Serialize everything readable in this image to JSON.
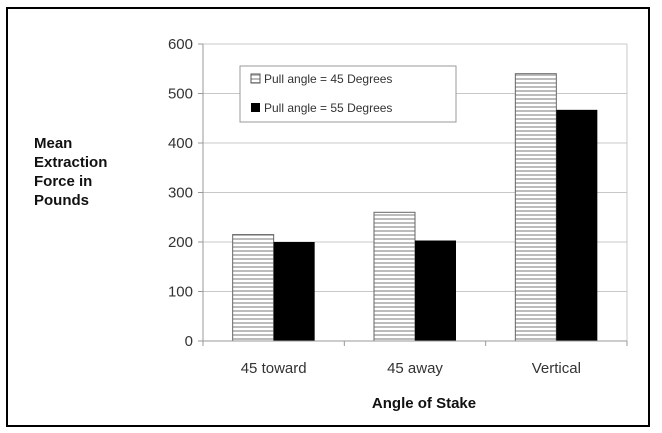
{
  "chart_data": {
    "type": "bar",
    "title": "",
    "xlabel": "Angle of Stake",
    "ylabel": [
      "Mean",
      "Extraction",
      "Force in",
      "Pounds"
    ],
    "categories": [
      "45 toward",
      "45 away",
      "Vertical"
    ],
    "ylim": [
      0,
      600
    ],
    "yticks": [
      "0",
      "100",
      "200",
      "300",
      "400",
      "500",
      "600"
    ],
    "grid": true,
    "legend_position": "top-left",
    "series": [
      {
        "name": "Pull angle = 45 Degrees",
        "values": [
          215,
          260,
          540
        ],
        "pattern": "horizontal-stripes"
      },
      {
        "name": "Pull angle = 55 Degrees",
        "values": [
          200,
          203,
          467
        ],
        "pattern": "solid-black"
      }
    ]
  },
  "colors": {
    "gridline": "#c8c8c8",
    "axis": "#999999",
    "stripe_light": "#ffffff",
    "stripe_dark": "#bcbcbc",
    "solid_bar": "#000000"
  }
}
